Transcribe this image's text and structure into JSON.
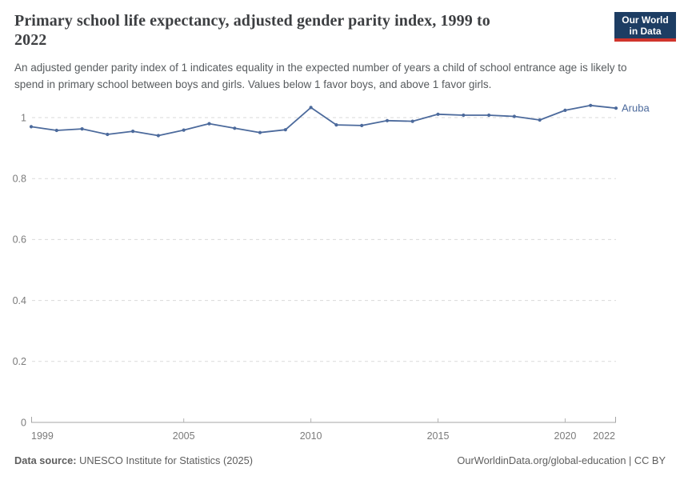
{
  "header": {
    "title_line1": "Primary school life expectancy, adjusted gender parity index, 1999 to",
    "title_line2": "2022",
    "subtitle": "An adjusted gender parity index of 1 indicates equality in the expected number of years a child of school entrance age is likely to spend in primary school between boys and girls. Values below 1 favor boys, and above 1 favor girls.",
    "logo": {
      "line1": "Our World",
      "line2": "in Data",
      "bg_color": "#1d3d63",
      "accent_color": "#d0342c"
    }
  },
  "chart_data": {
    "type": "line",
    "title": "Primary school life expectancy, adjusted gender parity index, 1999 to 2022",
    "xlabel": "",
    "ylabel": "",
    "x": [
      1999,
      2000,
      2001,
      2002,
      2003,
      2004,
      2005,
      2006,
      2007,
      2008,
      2009,
      2010,
      2011,
      2012,
      2013,
      2014,
      2015,
      2016,
      2017,
      2018,
      2019,
      2020,
      2021,
      2022
    ],
    "series": [
      {
        "name": "Aruba",
        "color": "#4C6A9C",
        "values": [
          0.97,
          0.958,
          0.963,
          0.945,
          0.955,
          0.941,
          0.959,
          0.98,
          0.965,
          0.951,
          0.96,
          1.033,
          0.976,
          0.974,
          0.99,
          0.988,
          1.011,
          1.008,
          1.008,
          1.004,
          0.992,
          1.024,
          1.04,
          1.031
        ]
      }
    ],
    "xlim": [
      1999,
      2022
    ],
    "ylim": [
      0,
      1.06
    ],
    "x_ticks": [
      1999,
      2005,
      2010,
      2015,
      2020,
      2022
    ],
    "y_ticks": [
      0,
      0.2,
      0.4,
      0.6,
      0.8,
      1
    ],
    "y_tick_labels": [
      "0",
      "0.2",
      "0.4",
      "0.6",
      "0.8",
      "1"
    ],
    "grid": "horizontal dashed",
    "legend_position": "end-of-line label",
    "entity_label": "Aruba"
  },
  "footer": {
    "source_label": "Data source:",
    "source_value": "UNESCO Institute for Statistics (2025)",
    "credit": "OurWorldinData.org/global-education | CC BY"
  }
}
